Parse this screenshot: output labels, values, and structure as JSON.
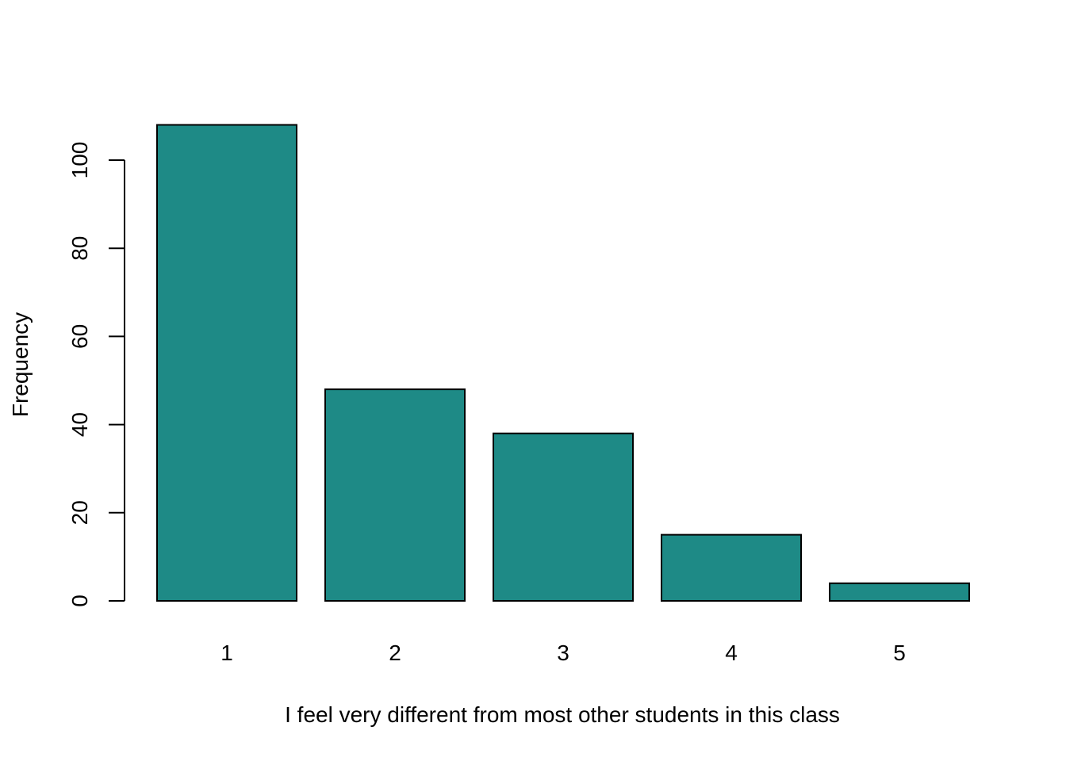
{
  "colors": {
    "bar_fill": "#1e8a86",
    "bar_stroke": "#000000",
    "axis": "#000000",
    "background": "#ffffff"
  },
  "chart_data": {
    "type": "bar",
    "title": "",
    "xlabel": "I feel very different from most other students in this class",
    "ylabel": "Frequency",
    "categories": [
      "1",
      "2",
      "3",
      "4",
      "5"
    ],
    "values": [
      108,
      48,
      38,
      15,
      4
    ],
    "ylim": [
      0,
      108
    ],
    "yticks": [
      0,
      20,
      40,
      60,
      80,
      100
    ],
    "grid": false,
    "legend": "none"
  }
}
